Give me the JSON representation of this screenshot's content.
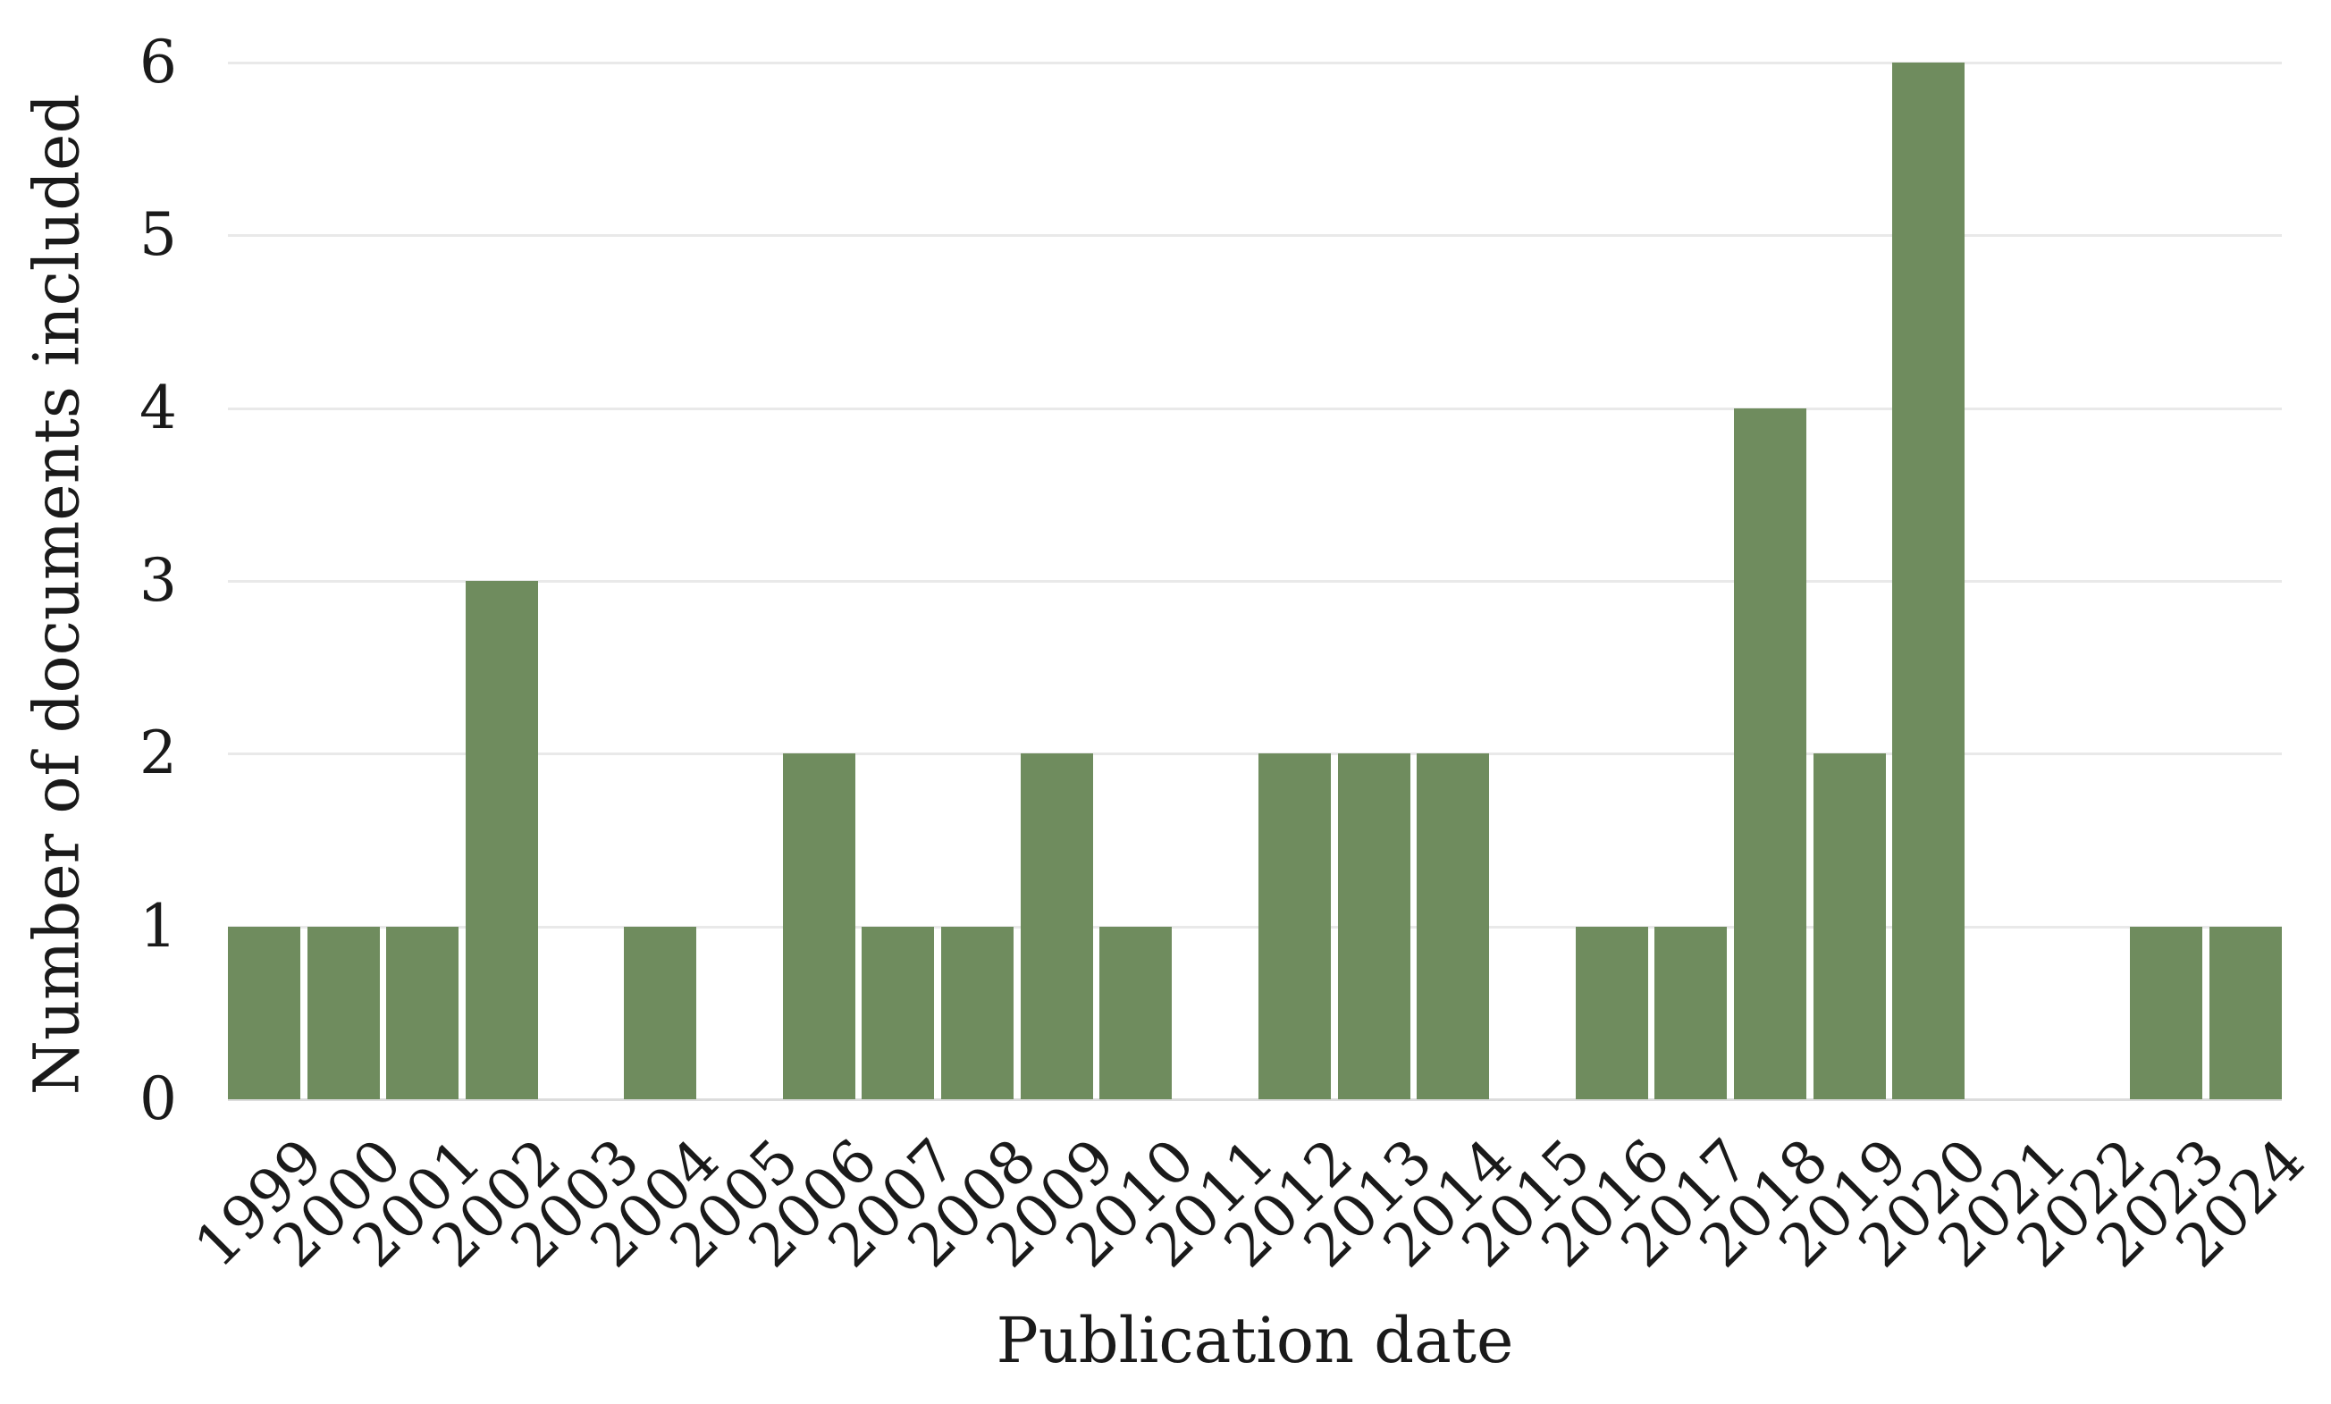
{
  "chart_data": {
    "type": "bar",
    "title": "",
    "xlabel": "Publication date",
    "ylabel": "Number of documents included",
    "categories": [
      "1999",
      "2000",
      "2001",
      "2002",
      "2003",
      "2004",
      "2005",
      "2006",
      "2007",
      "2008",
      "2009",
      "2010",
      "2011",
      "2012",
      "2013",
      "2014",
      "2015",
      "2016",
      "2017",
      "2018",
      "2019",
      "2020",
      "2021",
      "2022",
      "2023",
      "2024"
    ],
    "values": [
      1,
      1,
      1,
      3,
      0,
      1,
      0,
      2,
      1,
      1,
      2,
      1,
      0,
      2,
      2,
      2,
      0,
      1,
      1,
      4,
      2,
      6,
      0,
      0,
      1,
      1
    ],
    "ylim": [
      0,
      6
    ],
    "yticks": [
      0,
      1,
      2,
      3,
      4,
      5,
      6
    ],
    "grid": "horizontal gridlines on, integer steps",
    "legend": "none",
    "bar_color": "#6F8C5E",
    "gridline_color": "#E9E9E9",
    "baseline_color": "#DCDCDC",
    "text_color": "#1A1A1A",
    "background_color": "#FFFFFF"
  }
}
